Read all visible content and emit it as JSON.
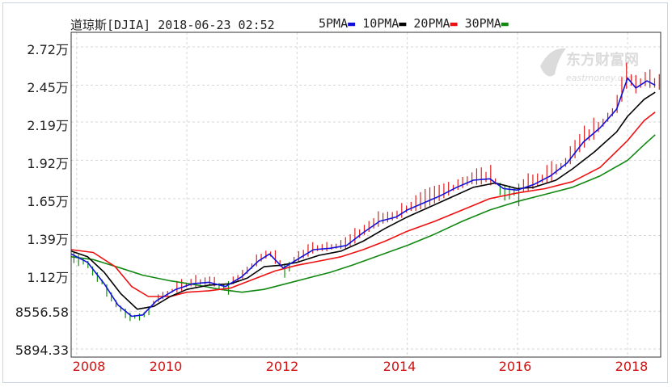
{
  "header": {
    "title": "道琼斯[DJIA] 2018-06-23 02:52",
    "ma": [
      {
        "label": "5PMA",
        "color": "#1010dd"
      },
      {
        "label": "10PMA",
        "color": "#000000"
      },
      {
        "label": "20PMA",
        "color": "#ee1010"
      },
      {
        "label": "30PMA",
        "color": "#118811"
      }
    ]
  },
  "watermark": {
    "cn": "东方财富网",
    "en": "eastmoney.com"
  },
  "chart_data": {
    "type": "line",
    "ylim": [
      5894.33,
      28000
    ],
    "yticks": [
      {
        "value": 27200,
        "label": "2.72万"
      },
      {
        "value": 24500,
        "label": "2.45万"
      },
      {
        "value": 21900,
        "label": "2.19万"
      },
      {
        "value": 19200,
        "label": "1.92万"
      },
      {
        "value": 16500,
        "label": "1.65万"
      },
      {
        "value": 13900,
        "label": "1.39万"
      },
      {
        "value": 11200,
        "label": "1.12万"
      },
      {
        "value": 8556.58,
        "label": "8556.58"
      },
      {
        "value": 5894.33,
        "label": "5894.33"
      }
    ],
    "xlim": [
      2007.9,
      2018.6
    ],
    "xticks": [
      {
        "value": 2008,
        "label": "2008"
      },
      {
        "value": 2010,
        "label": "2010"
      },
      {
        "value": 2012,
        "label": "2012"
      },
      {
        "value": 2014,
        "label": "2014"
      },
      {
        "value": 2016,
        "label": "2016"
      },
      {
        "value": 2018,
        "label": "2018"
      }
    ],
    "series": [
      {
        "name": "5PMA",
        "color": "#1010dd",
        "points": [
          [
            2007.9,
            12600
          ],
          [
            2008.2,
            12000
          ],
          [
            2008.5,
            10500
          ],
          [
            2008.75,
            9000
          ],
          [
            2009.0,
            8200
          ],
          [
            2009.2,
            8300
          ],
          [
            2009.45,
            9300
          ],
          [
            2009.8,
            10100
          ],
          [
            2010.1,
            10500
          ],
          [
            2010.4,
            10600
          ],
          [
            2010.7,
            10300
          ],
          [
            2011.0,
            11000
          ],
          [
            2011.3,
            12100
          ],
          [
            2011.5,
            12600
          ],
          [
            2011.75,
            11600
          ],
          [
            2012.0,
            12200
          ],
          [
            2012.3,
            12900
          ],
          [
            2012.6,
            13000
          ],
          [
            2012.9,
            13200
          ],
          [
            2013.2,
            14100
          ],
          [
            2013.5,
            14900
          ],
          [
            2013.8,
            15200
          ],
          [
            2014.0,
            15700
          ],
          [
            2014.3,
            16200
          ],
          [
            2014.6,
            16700
          ],
          [
            2014.9,
            17300
          ],
          [
            2015.2,
            17800
          ],
          [
            2015.5,
            17900
          ],
          [
            2015.75,
            17200
          ],
          [
            2016.0,
            17100
          ],
          [
            2016.3,
            17500
          ],
          [
            2016.6,
            18100
          ],
          [
            2016.9,
            19000
          ],
          [
            2017.2,
            20500
          ],
          [
            2017.5,
            21500
          ],
          [
            2017.8,
            22800
          ],
          [
            2018.0,
            25000
          ],
          [
            2018.15,
            24300
          ],
          [
            2018.35,
            24800
          ],
          [
            2018.5,
            24500
          ]
        ]
      },
      {
        "name": "10PMA",
        "color": "#000000",
        "points": [
          [
            2007.9,
            12800
          ],
          [
            2008.2,
            12400
          ],
          [
            2008.5,
            11300
          ],
          [
            2008.8,
            9800
          ],
          [
            2009.1,
            8700
          ],
          [
            2009.4,
            8900
          ],
          [
            2009.7,
            9600
          ],
          [
            2010.0,
            10100
          ],
          [
            2010.4,
            10400
          ],
          [
            2010.8,
            10500
          ],
          [
            2011.1,
            10900
          ],
          [
            2011.4,
            11700
          ],
          [
            2011.7,
            11800
          ],
          [
            2012.0,
            12000
          ],
          [
            2012.4,
            12500
          ],
          [
            2012.8,
            12800
          ],
          [
            2013.2,
            13500
          ],
          [
            2013.6,
            14400
          ],
          [
            2014.0,
            15200
          ],
          [
            2014.4,
            15900
          ],
          [
            2014.8,
            16600
          ],
          [
            2015.2,
            17300
          ],
          [
            2015.6,
            17600
          ],
          [
            2016.0,
            17200
          ],
          [
            2016.3,
            17300
          ],
          [
            2016.7,
            17800
          ],
          [
            2017.0,
            18600
          ],
          [
            2017.4,
            19800
          ],
          [
            2017.8,
            21200
          ],
          [
            2018.0,
            22300
          ],
          [
            2018.3,
            23500
          ],
          [
            2018.5,
            24000
          ]
        ]
      },
      {
        "name": "20PMA",
        "color": "#ee1010",
        "points": [
          [
            2007.9,
            12900
          ],
          [
            2008.3,
            12700
          ],
          [
            2008.7,
            11700
          ],
          [
            2009.0,
            10300
          ],
          [
            2009.3,
            9600
          ],
          [
            2009.7,
            9600
          ],
          [
            2010.0,
            9900
          ],
          [
            2010.4,
            10000
          ],
          [
            2010.8,
            10200
          ],
          [
            2011.2,
            10800
          ],
          [
            2011.6,
            11400
          ],
          [
            2012.0,
            11800
          ],
          [
            2012.4,
            12100
          ],
          [
            2012.8,
            12400
          ],
          [
            2013.2,
            12900
          ],
          [
            2013.6,
            13500
          ],
          [
            2014.0,
            14200
          ],
          [
            2014.5,
            14900
          ],
          [
            2015.0,
            15700
          ],
          [
            2015.5,
            16500
          ],
          [
            2016.0,
            16900
          ],
          [
            2016.5,
            17200
          ],
          [
            2017.0,
            17700
          ],
          [
            2017.5,
            18700
          ],
          [
            2018.0,
            20600
          ],
          [
            2018.3,
            22000
          ],
          [
            2018.5,
            22600
          ]
        ]
      },
      {
        "name": "30PMA",
        "color": "#118811",
        "points": [
          [
            2007.9,
            12400
          ],
          [
            2008.3,
            12200
          ],
          [
            2008.8,
            11600
          ],
          [
            2009.2,
            11100
          ],
          [
            2009.7,
            10700
          ],
          [
            2010.2,
            10400
          ],
          [
            2010.6,
            10100
          ],
          [
            2011.0,
            9900
          ],
          [
            2011.4,
            10100
          ],
          [
            2011.8,
            10500
          ],
          [
            2012.2,
            10900
          ],
          [
            2012.6,
            11300
          ],
          [
            2013.0,
            11800
          ],
          [
            2013.5,
            12500
          ],
          [
            2014.0,
            13200
          ],
          [
            2014.5,
            14000
          ],
          [
            2015.0,
            14900
          ],
          [
            2015.5,
            15700
          ],
          [
            2016.0,
            16300
          ],
          [
            2016.5,
            16800
          ],
          [
            2017.0,
            17300
          ],
          [
            2017.5,
            18100
          ],
          [
            2018.0,
            19200
          ],
          [
            2018.3,
            20300
          ],
          [
            2018.5,
            21000
          ]
        ]
      }
    ]
  }
}
